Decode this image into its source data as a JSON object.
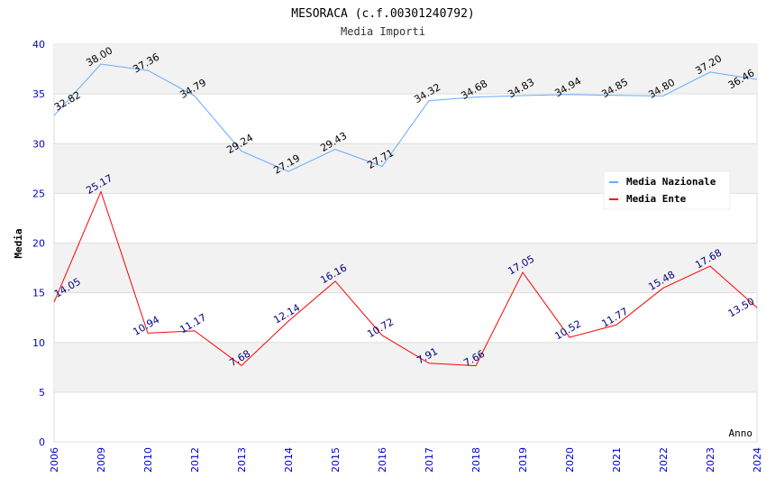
{
  "chart_data": {
    "type": "line",
    "title": "MESORACA (c.f.00301240792)",
    "subtitle": "Media Importi",
    "xlabel": "Anno",
    "ylabel": "Media",
    "ylim": [
      0,
      40
    ],
    "yticks": [
      "0",
      "5",
      "10",
      "15",
      "20",
      "25",
      "30",
      "35",
      "40"
    ],
    "categories": [
      "2006",
      "2009",
      "2010",
      "2012",
      "2013",
      "2014",
      "2015",
      "2016",
      "2017",
      "2018",
      "2019",
      "2020",
      "2021",
      "2022",
      "2023",
      "2024"
    ],
    "grid": true,
    "legend_position": "top-right",
    "series": [
      {
        "name": "Media Nazionale",
        "color": "#66aaff",
        "label_color": "#000000",
        "values": [
          32.82,
          38.0,
          37.36,
          34.79,
          29.24,
          27.19,
          29.43,
          27.71,
          34.32,
          34.68,
          34.83,
          34.94,
          34.85,
          34.8,
          37.2,
          36.46
        ],
        "labels": [
          "32.82",
          "38.00",
          "37.36",
          "34.79",
          "29.24",
          "27.19",
          "29.43",
          "27.71",
          "34.32",
          "34.68",
          "34.83",
          "34.94",
          "34.85",
          "34.80",
          "37.20",
          "36.46"
        ]
      },
      {
        "name": "Media Ente",
        "color": "#ff0000",
        "label_color": "#000080",
        "values": [
          14.05,
          25.17,
          10.94,
          11.17,
          7.68,
          12.14,
          16.16,
          10.72,
          7.91,
          7.66,
          17.05,
          10.52,
          11.77,
          15.48,
          17.68,
          13.5
        ],
        "labels": [
          "14.05",
          "25.17",
          "10.94",
          "11.17",
          "7.68",
          "12.14",
          "16.16",
          "10.72",
          "7.91",
          "7.66",
          "17.05",
          "10.52",
          "11.77",
          "15.48",
          "17.68",
          "13.50"
        ]
      }
    ]
  }
}
